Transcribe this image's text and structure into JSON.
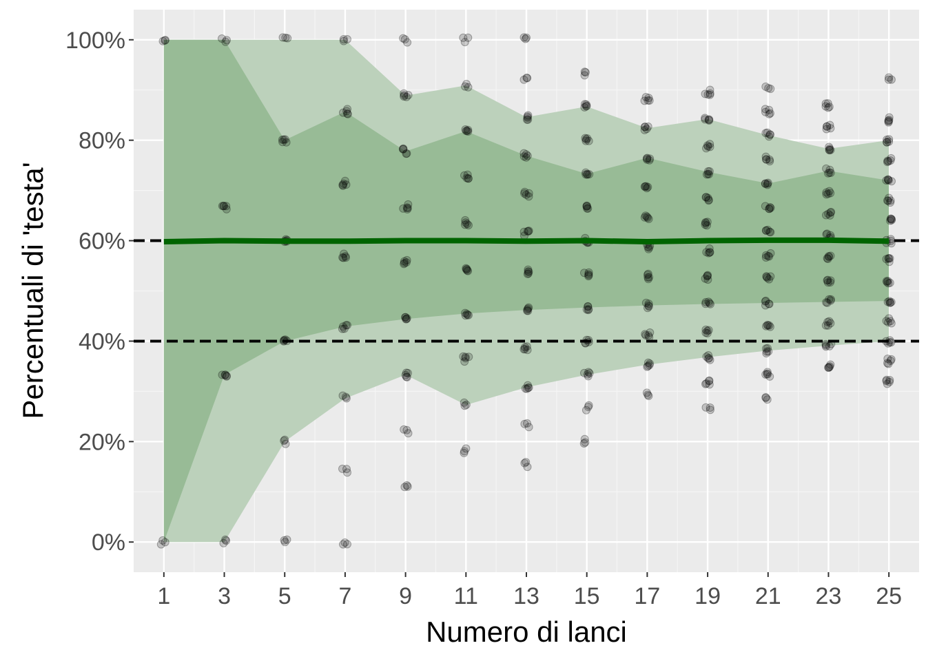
{
  "chart_data": {
    "type": "scatter",
    "xlabel": "Numero di lanci",
    "ylabel": "Percentuali di 'testa'",
    "x_ticks": [
      1,
      3,
      5,
      7,
      9,
      11,
      13,
      15,
      17,
      19,
      21,
      23,
      25
    ],
    "x_tick_labels": [
      "1",
      "3",
      "5",
      "7",
      "9",
      "11",
      "13",
      "15",
      "17",
      "19",
      "21",
      "23",
      "25"
    ],
    "y_ticks": [
      0,
      20,
      40,
      60,
      80,
      100
    ],
    "y_tick_labels": [
      "0%",
      "20%",
      "40%",
      "60%",
      "80%",
      "100%"
    ],
    "xlim": [
      0,
      26
    ],
    "ylim": [
      -6,
      106
    ],
    "grid": true,
    "legend": "none",
    "colors": {
      "panel": "#ebebeb",
      "grid_major": "#ffffff",
      "ribbon_outer": "#bcd1bb",
      "ribbon_inner": "#98bb96",
      "mean_line": "#006400",
      "points": "#000000",
      "reference_lines": "#000000"
    },
    "x": [
      1,
      3,
      5,
      7,
      9,
      11,
      13,
      15,
      17,
      19,
      21,
      23,
      25
    ],
    "outer_band": {
      "lower": [
        0,
        0,
        20,
        28.6,
        33.3,
        27.3,
        30.8,
        33.3,
        35.3,
        36.8,
        38.1,
        39.1,
        40
      ],
      "upper": [
        100,
        100,
        100,
        100,
        88.9,
        90.9,
        84.6,
        86.7,
        82.4,
        84.2,
        81,
        78.3,
        80
      ]
    },
    "inner_band": {
      "lower": [
        0,
        33.3,
        40,
        42.9,
        44.4,
        45.5,
        46.2,
        46.7,
        47.1,
        47.4,
        47.6,
        47.8,
        48
      ],
      "upper": [
        100,
        100,
        80,
        85.7,
        77.8,
        81.8,
        76.9,
        73.3,
        76.5,
        73.7,
        71.4,
        73.9,
        72
      ]
    },
    "mean_line": [
      59.8,
      60,
      59.9,
      59.9,
      60,
      60,
      59.9,
      60,
      59.8,
      60,
      60.1,
      60.1,
      59.9
    ],
    "reference_lines": [
      40,
      60
    ],
    "point_values": [
      {
        "x": 1,
        "y": [
          0,
          100
        ]
      },
      {
        "x": 3,
        "y": [
          0,
          33.3,
          66.7,
          100
        ]
      },
      {
        "x": 5,
        "y": [
          0,
          20,
          40,
          60,
          80,
          100
        ]
      },
      {
        "x": 7,
        "y": [
          0,
          14.3,
          28.6,
          42.9,
          57.1,
          71.4,
          85.7,
          100
        ]
      },
      {
        "x": 9,
        "y": [
          11.1,
          22.2,
          33.3,
          44.4,
          55.6,
          66.7,
          77.8,
          88.9,
          100
        ]
      },
      {
        "x": 11,
        "y": [
          18.2,
          27.3,
          36.4,
          45.5,
          54.5,
          63.6,
          72.7,
          81.8,
          90.9,
          100
        ]
      },
      {
        "x": 13,
        "y": [
          15.4,
          23.1,
          30.8,
          38.5,
          46.2,
          53.8,
          61.5,
          69.2,
          76.9,
          84.6,
          92.3,
          100
        ]
      },
      {
        "x": 15,
        "y": [
          20,
          26.7,
          33.3,
          40,
          46.7,
          53.3,
          60,
          66.7,
          73.3,
          80,
          86.7,
          93.3
        ]
      },
      {
        "x": 17,
        "y": [
          29.4,
          35.3,
          41.2,
          47.1,
          52.9,
          58.8,
          64.7,
          70.6,
          76.5,
          82.4,
          88.2
        ]
      },
      {
        "x": 19,
        "y": [
          26.3,
          31.6,
          36.8,
          42.1,
          47.4,
          52.6,
          57.9,
          63.2,
          68.4,
          73.7,
          78.9,
          84.2,
          89.5
        ]
      },
      {
        "x": 21,
        "y": [
          28.6,
          33.3,
          38.1,
          42.9,
          47.6,
          52.4,
          57.1,
          61.9,
          66.7,
          71.4,
          76.2,
          81,
          85.7,
          90.5
        ]
      },
      {
        "x": 23,
        "y": [
          34.8,
          39.1,
          43.5,
          47.8,
          52.2,
          56.5,
          60.9,
          65.2,
          69.6,
          73.9,
          78.3,
          82.6,
          87
        ]
      },
      {
        "x": 25,
        "y": [
          32,
          36,
          40,
          44,
          48,
          52,
          56,
          60,
          64,
          68,
          72,
          76,
          80,
          84,
          92
        ]
      }
    ]
  }
}
